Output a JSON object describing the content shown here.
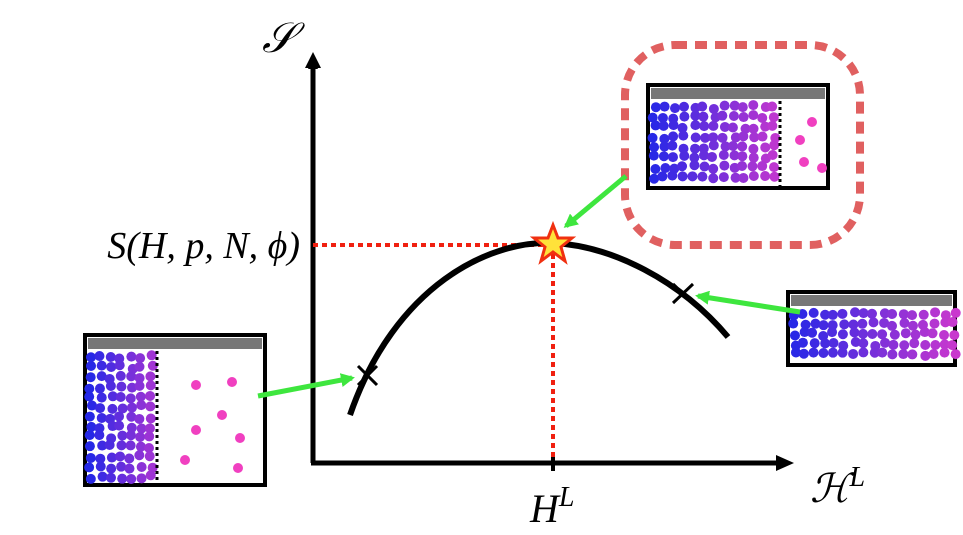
{
  "y_axis": {
    "label": "𝒮"
  },
  "x_axis": {
    "label": "ℋ",
    "superscript": "L"
  },
  "peak": {
    "y_label": "S(H, p, N, ϕ)",
    "x_label": "H",
    "x_superscript": "L"
  }
}
